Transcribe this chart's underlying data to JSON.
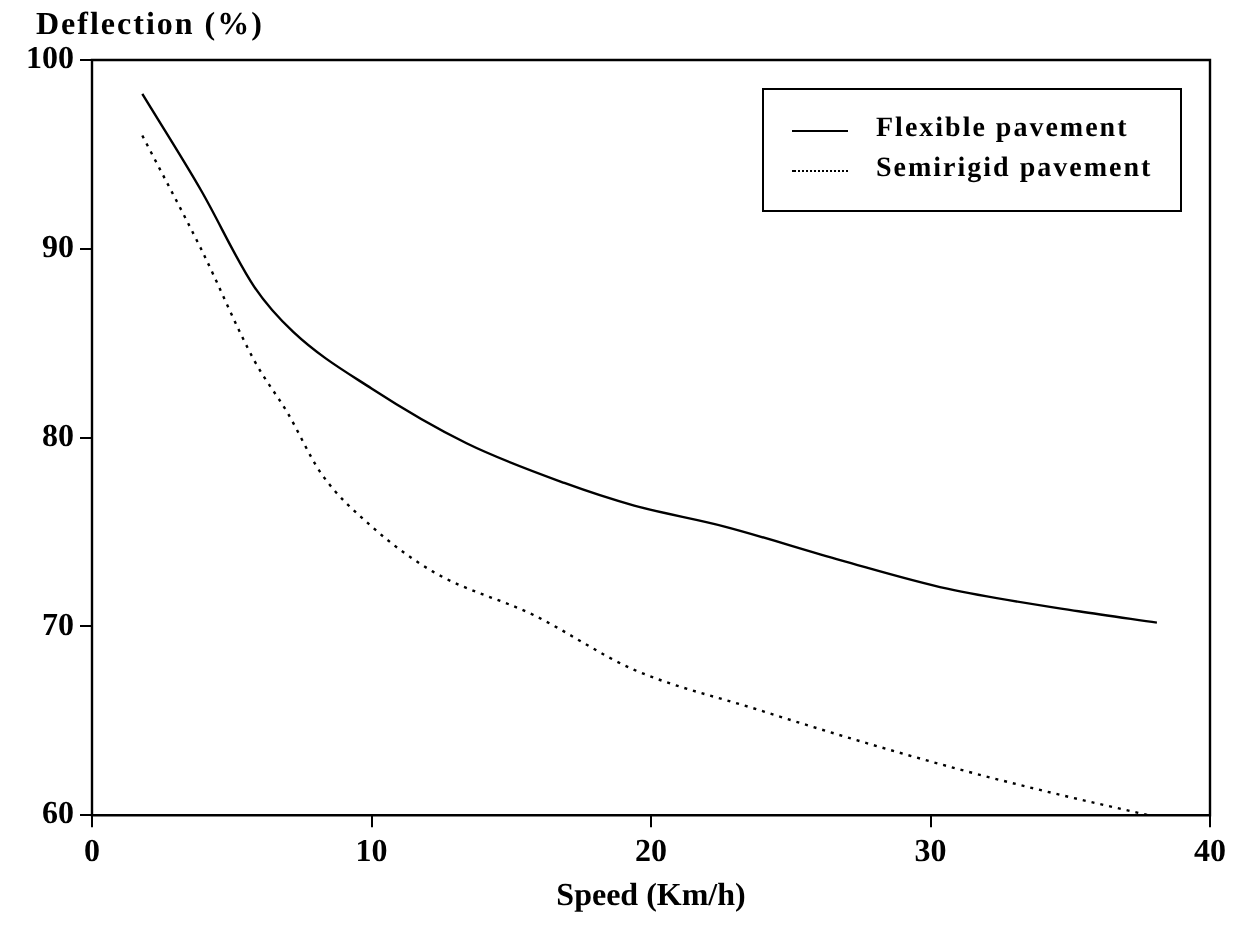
{
  "chart_data": {
    "type": "line",
    "xlabel": "Speed (Km/h)",
    "ylabel": "Deflection (%)",
    "xlim": [
      0,
      40
    ],
    "xticks": [
      0,
      10,
      20,
      30,
      40
    ],
    "ylim": [
      60,
      100
    ],
    "yticks": [
      60,
      70,
      80,
      90,
      100
    ],
    "grid": false,
    "legend": "top right",
    "marker": "none",
    "series": [
      {
        "name": "Flexible pavement",
        "color": "#000000",
        "line_style": "solid",
        "x": [
          1.8,
          3.9,
          5.8,
          7.2,
          10,
          13.4,
          16.9,
          19.4,
          22.6,
          26.8,
          30.6,
          35.3,
          38.1
        ],
        "values": [
          98.2,
          93.1,
          88.0,
          85.6,
          82.6,
          79.7,
          77.6,
          76.4,
          75.3,
          73.5,
          72.0,
          70.8,
          70.2
        ]
      },
      {
        "name": "Semirigid pavement",
        "color": "#000000",
        "line_style": "dotted",
        "x": [
          1.8,
          3.9,
          5.8,
          7.0,
          8.2,
          10,
          12.2,
          15.8,
          19.4,
          23.8,
          27.3,
          31.1,
          34.3,
          37.8
        ],
        "values": [
          96.0,
          90.0,
          84.1,
          81.3,
          78.1,
          75.3,
          72.9,
          70.6,
          67.7,
          65.6,
          64.0,
          62.4,
          61.2,
          60.0
        ]
      }
    ]
  }
}
